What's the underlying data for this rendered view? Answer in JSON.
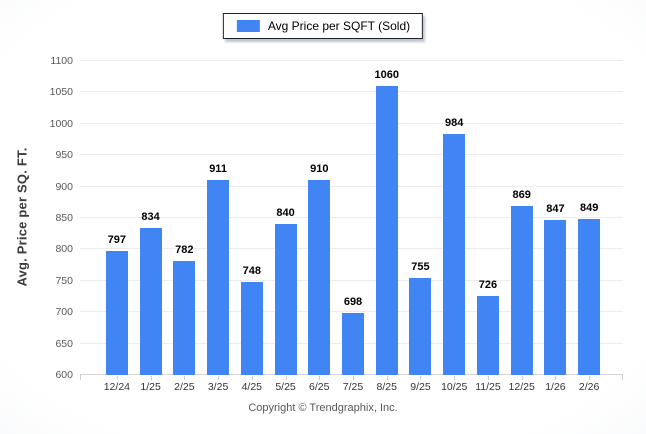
{
  "chart_data": {
    "type": "bar",
    "categories": [
      "12/24",
      "1/25",
      "2/25",
      "3/25",
      "4/25",
      "5/25",
      "6/25",
      "7/25",
      "8/25",
      "9/25",
      "10/25",
      "11/25",
      "12/25",
      "1/26",
      "2/26"
    ],
    "values": [
      797,
      834,
      782,
      911,
      748,
      840,
      910,
      698,
      1060,
      755,
      984,
      726,
      869,
      847,
      849
    ],
    "legend": "Avg Price per SQFT (Sold)",
    "ylabel": "Avg. Price per SQ. FT.",
    "ylim": [
      600,
      1100
    ],
    "yticks": [
      600,
      650,
      700,
      750,
      800,
      850,
      900,
      950,
      1000,
      1050,
      1100
    ],
    "bar_color": "#4184F3",
    "grid": true,
    "legend_position": "top-center",
    "value_labels": true
  },
  "footer": {
    "copyright": "Copyright © Trendgraphix, Inc."
  }
}
